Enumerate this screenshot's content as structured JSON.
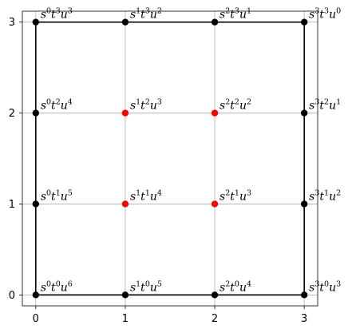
{
  "chart_data": {
    "type": "scatter",
    "title": "",
    "xlabel": "",
    "ylabel": "",
    "xlim": [
      -0.15,
      3.15
    ],
    "ylim": [
      -0.12,
      3.12
    ],
    "x_ticks": [
      0,
      1,
      2,
      3
    ],
    "y_ticks": [
      0,
      1,
      2,
      3
    ],
    "grid": true,
    "colors": {
      "boundary": "#000000",
      "interior": "#ff0000",
      "grid": "#b0b0b0"
    },
    "boundary_path": [
      [
        0,
        0
      ],
      [
        3,
        0
      ],
      [
        3,
        3
      ],
      [
        0,
        3
      ],
      [
        0,
        0
      ]
    ],
    "points": [
      {
        "x": 0,
        "y": 3,
        "color": "black",
        "label": {
          "s": "0",
          "t": "3",
          "u": "3"
        }
      },
      {
        "x": 1,
        "y": 3,
        "color": "black",
        "label": {
          "s": "1",
          "t": "3",
          "u": "2"
        }
      },
      {
        "x": 2,
        "y": 3,
        "color": "black",
        "label": {
          "s": "2",
          "t": "3",
          "u": "1"
        }
      },
      {
        "x": 3,
        "y": 3,
        "color": "black",
        "label": {
          "s": "3",
          "t": "3",
          "u": "0"
        }
      },
      {
        "x": 0,
        "y": 2,
        "color": "black",
        "label": {
          "s": "0",
          "t": "2",
          "u": "4"
        }
      },
      {
        "x": 1,
        "y": 2,
        "color": "red",
        "label": {
          "s": "1",
          "t": "2",
          "u": "3"
        }
      },
      {
        "x": 2,
        "y": 2,
        "color": "red",
        "label": {
          "s": "2",
          "t": "2",
          "u": "2"
        }
      },
      {
        "x": 3,
        "y": 2,
        "color": "black",
        "label": {
          "s": "3",
          "t": "2",
          "u": "1"
        }
      },
      {
        "x": 0,
        "y": 1,
        "color": "black",
        "label": {
          "s": "0",
          "t": "1",
          "u": "5"
        }
      },
      {
        "x": 1,
        "y": 1,
        "color": "red",
        "label": {
          "s": "1",
          "t": "1",
          "u": "4"
        }
      },
      {
        "x": 2,
        "y": 1,
        "color": "red",
        "label": {
          "s": "2",
          "t": "1",
          "u": "3"
        }
      },
      {
        "x": 3,
        "y": 1,
        "color": "black",
        "label": {
          "s": "3",
          "t": "1",
          "u": "2"
        }
      },
      {
        "x": 0,
        "y": 0,
        "color": "black",
        "label": {
          "s": "0",
          "t": "0",
          "u": "6"
        }
      },
      {
        "x": 1,
        "y": 0,
        "color": "black",
        "label": {
          "s": "1",
          "t": "0",
          "u": "5"
        }
      },
      {
        "x": 2,
        "y": 0,
        "color": "black",
        "label": {
          "s": "2",
          "t": "0",
          "u": "4"
        }
      },
      {
        "x": 3,
        "y": 0,
        "color": "black",
        "label": {
          "s": "3",
          "t": "0",
          "u": "3"
        }
      }
    ]
  }
}
